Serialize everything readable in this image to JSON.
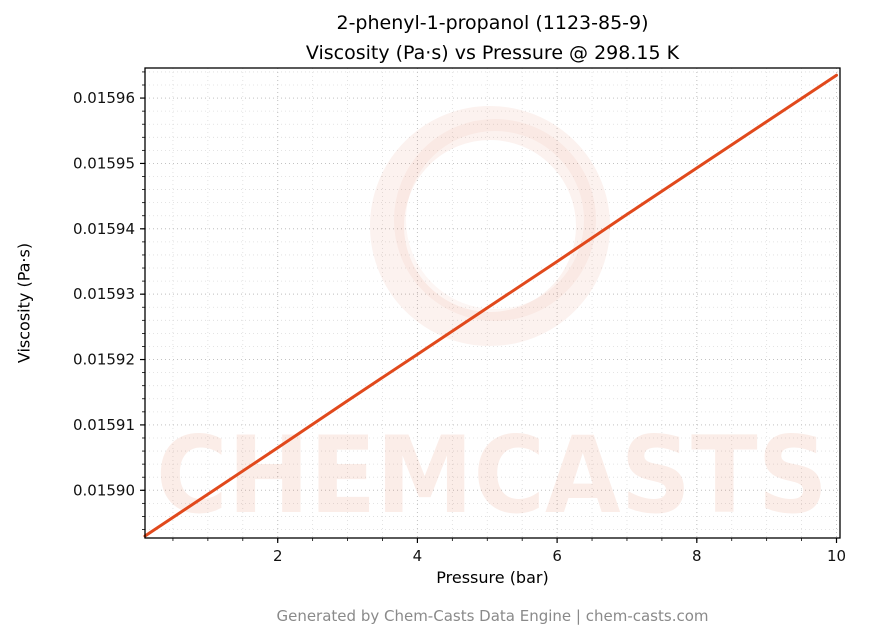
{
  "page": {
    "footer": "Generated by Chem-Casts Data Engine | chem-casts.com",
    "background": "#ffffff"
  },
  "watermark": {
    "text": "CHEMCASTS",
    "color": "#d94a1e"
  },
  "chart_data": {
    "type": "line",
    "title_line1": "2-phenyl-1-propanol (1123-85-9)",
    "title_line2": "Viscosity (Pa·s) vs Pressure @ 298.15 K",
    "xlabel": "Pressure (bar)",
    "ylabel": "Viscosity (Pa·s)",
    "xlim": [
      0.1,
      10.05
    ],
    "ylim": [
      0.0158927,
      0.0159646
    ],
    "xticks": [
      2,
      4,
      6,
      8,
      10
    ],
    "xtick_labels": [
      "2",
      "4",
      "6",
      "8",
      "10"
    ],
    "yticks": [
      0.0159,
      0.01591,
      0.01592,
      0.01593,
      0.01594,
      0.01595,
      0.01596
    ],
    "ytick_labels": [
      "0.01590",
      "0.01591",
      "0.01592",
      "0.01593",
      "0.01594",
      "0.01595",
      "0.01596"
    ],
    "x_minor_step": 0.5,
    "y_minor_step": 2e-06,
    "grid": true,
    "legend": "none",
    "line_color": "#e1491c",
    "grid_color_major": "#c3c3c3",
    "grid_color_minor": "#dcdcdc",
    "series": [
      {
        "name": "viscosity_vs_pressure",
        "x": [
          0.1,
          1,
          2,
          3,
          4,
          5,
          6,
          7,
          8,
          9,
          10
        ],
        "y": [
          0.015893,
          0.0158994,
          0.0159065,
          0.0159137,
          0.0159208,
          0.0159279,
          0.015935,
          0.0159422,
          0.0159493,
          0.0159564,
          0.0159635
        ]
      }
    ]
  }
}
